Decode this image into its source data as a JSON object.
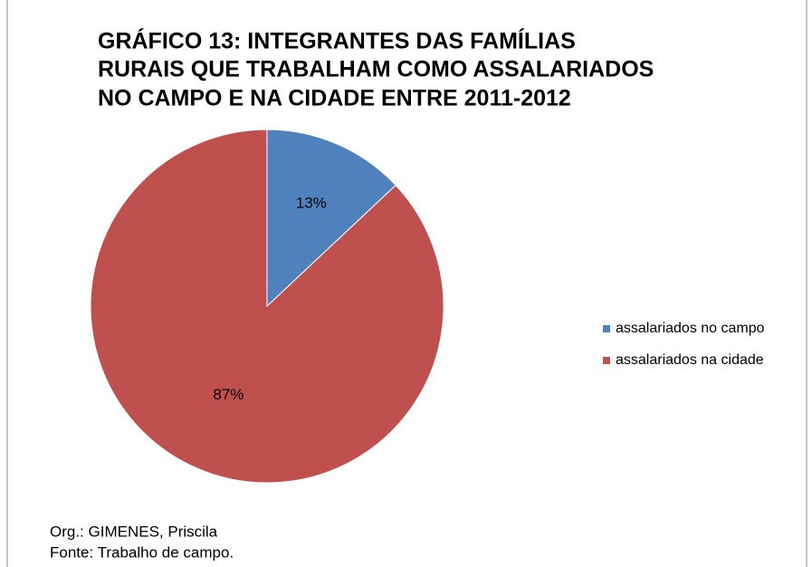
{
  "chart_data": {
    "type": "pie",
    "title": [
      "GRÁFICO 13: INTEGRANTES DAS FAMÍLIAS",
      "RURAIS QUE TRABALHAM COMO ASSALARIADOS",
      "NO CAMPO E NA CIDADE ENTRE 2011-2012"
    ],
    "categories": [
      "assalariados no campo",
      "assalariados na cidade"
    ],
    "values": [
      13,
      87
    ],
    "value_labels": [
      "13%",
      "87%"
    ],
    "colors": [
      "#4f81bd",
      "#c0504d"
    ],
    "legend": "right",
    "notes": [
      "Org.: GIMENES, Priscila",
      "Fonte: Trabalho de campo."
    ]
  }
}
